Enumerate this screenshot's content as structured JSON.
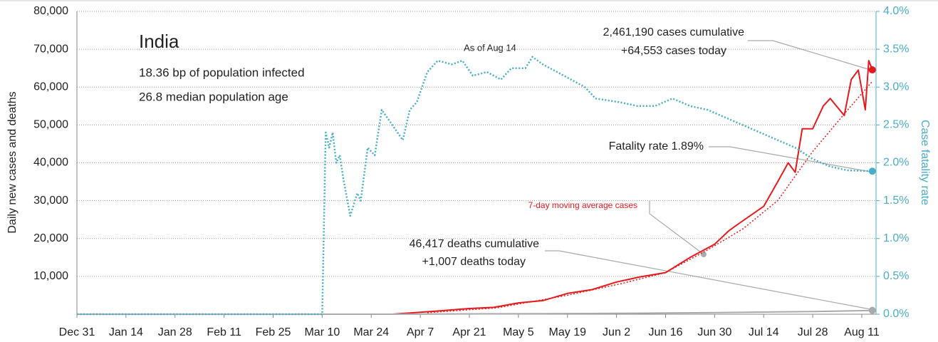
{
  "chart_data": {
    "type": "line",
    "title": "India",
    "subtitle_lines": [
      "18.36 bp of population infected",
      "26.8 median population age"
    ],
    "y_label": "Daily new cases and deaths",
    "y2_label": "Case fatality rate",
    "annotations": {
      "as_of": "As of Aug 14",
      "cases_cumulative": "2,461,190 cases cumulative",
      "cases_today": "+64,553 cases today",
      "fatality": "Fatality rate 1.89%",
      "deaths_cumulative": "46,417 deaths cumulative",
      "deaths_today": "+1,007 deaths today"
    },
    "xlim": [
      0,
      227
    ],
    "xticks": [
      {
        "value": 0,
        "label": "Dec 31"
      },
      {
        "value": 14,
        "label": "Jan 14"
      },
      {
        "value": 28,
        "label": "Jan 28"
      },
      {
        "value": 42,
        "label": "Feb 11"
      },
      {
        "value": 56,
        "label": "Feb 25"
      },
      {
        "value": 70,
        "label": "Mar 10"
      },
      {
        "value": 84,
        "label": "Mar 24"
      },
      {
        "value": 98,
        "label": "Apr 7"
      },
      {
        "value": 112,
        "label": "Apr 21"
      },
      {
        "value": 126,
        "label": "May 5"
      },
      {
        "value": 140,
        "label": "May 19"
      },
      {
        "value": 154,
        "label": "Jun 2"
      },
      {
        "value": 168,
        "label": "Jun 16"
      },
      {
        "value": 182,
        "label": "Jun 30"
      },
      {
        "value": 196,
        "label": "Jul 14"
      },
      {
        "value": 210,
        "label": "Jul 28"
      },
      {
        "value": 224,
        "label": "Aug 11"
      }
    ],
    "ylim": [
      0,
      80000
    ],
    "yticks": [
      {
        "value": 10000,
        "label": "10,000"
      },
      {
        "value": 20000,
        "label": "20,000"
      },
      {
        "value": 30000,
        "label": "30,000"
      },
      {
        "value": 40000,
        "label": "40,000"
      },
      {
        "value": 50000,
        "label": "50,000"
      },
      {
        "value": 60000,
        "label": "60,000"
      },
      {
        "value": 70000,
        "label": "70,000"
      },
      {
        "value": 80000,
        "label": "80,000"
      }
    ],
    "y2lim": [
      0,
      4
    ],
    "y2ticks": [
      {
        "value": 0,
        "label": "0.0%"
      },
      {
        "value": 0.5,
        "label": "0.5%"
      },
      {
        "value": 1,
        "label": "1.0%"
      },
      {
        "value": 1.5,
        "label": "1.5%"
      },
      {
        "value": 2,
        "label": "2.0%"
      },
      {
        "value": 2.5,
        "label": "2.5%"
      },
      {
        "value": 3,
        "label": "3.0%"
      },
      {
        "value": 3.5,
        "label": "3.5%"
      },
      {
        "value": 4,
        "label": "4.0%"
      }
    ],
    "grid": true,
    "series": [
      {
        "color": "#e8191c",
        "style": "solid",
        "width": 2,
        "x": [
          0,
          90,
          98,
          105,
          112,
          119,
          126,
          133,
          140,
          147,
          154,
          161,
          168,
          175,
          182,
          186,
          189,
          196,
          200,
          203,
          205,
          207,
          210,
          213,
          215,
          219,
          221,
          223,
          225,
          226,
          227
        ],
        "values": [
          0,
          0,
          500,
          1000,
          1500,
          1800,
          3000,
          3600,
          5500,
          6500,
          8500,
          9900,
          11000,
          15000,
          18500,
          22000,
          24000,
          28500,
          35000,
          40000,
          37500,
          49000,
          49000,
          55000,
          57000,
          52500,
          62000,
          64500,
          54000,
          67000,
          64553
        ]
      },
      {
        "name": "7-day moving average cases",
        "color": "#e8191c",
        "style": "dotted",
        "width": 1.5,
        "x": [
          100,
          120,
          140,
          155,
          168,
          180,
          190,
          200,
          210,
          220,
          227
        ],
        "values": [
          400,
          1700,
          5000,
          8000,
          11000,
          17000,
          22500,
          30000,
          43000,
          54000,
          61500
        ]
      },
      {
        "color": "#aaaaaa",
        "style": "solid",
        "width": 2,
        "x": [
          0,
          90,
          150,
          180,
          200,
          210,
          227
        ],
        "values": [
          0,
          0,
          200,
          400,
          600,
          700,
          1007
        ]
      },
      {
        "color": "#4aaec8",
        "style": "dotted",
        "width": 2.5,
        "axis": "y2",
        "x": [
          0,
          70,
          71,
          72,
          73,
          74,
          75,
          76,
          78,
          80,
          81,
          83,
          85,
          87,
          90,
          93,
          95,
          97,
          100,
          103,
          107,
          110,
          113,
          117,
          121,
          124,
          128,
          130,
          133,
          137,
          141,
          145,
          148,
          155,
          160,
          165,
          170,
          175,
          180,
          185,
          190,
          195,
          200,
          205,
          210,
          215,
          220,
          227
        ],
        "values": [
          0,
          0,
          2.4,
          2.2,
          2.4,
          2.0,
          2.1,
          1.8,
          1.3,
          1.6,
          1.5,
          2.2,
          2.1,
          2.7,
          2.5,
          2.3,
          2.7,
          2.8,
          3.2,
          3.35,
          3.3,
          3.35,
          3.15,
          3.2,
          3.1,
          3.25,
          3.25,
          3.4,
          3.3,
          3.2,
          3.1,
          3.0,
          2.85,
          2.8,
          2.75,
          2.75,
          2.85,
          2.75,
          2.7,
          2.6,
          2.5,
          2.4,
          2.3,
          2.2,
          2.05,
          1.95,
          1.9,
          1.89
        ]
      }
    ]
  }
}
